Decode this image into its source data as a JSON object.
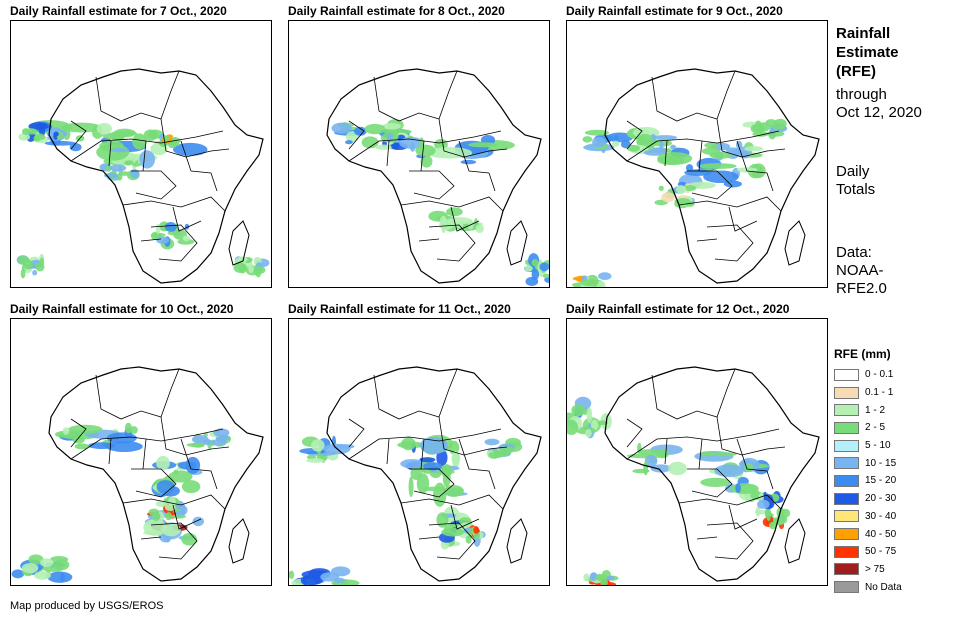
{
  "panels": [
    {
      "title": "Daily Rainfall estimate for 7 Oct., 2020",
      "day": 7
    },
    {
      "title": "Daily Rainfall estimate for 8 Oct., 2020",
      "day": 8
    },
    {
      "title": "Daily Rainfall estimate for 9 Oct., 2020",
      "day": 9
    },
    {
      "title": "Daily Rainfall estimate for 10 Oct., 2020",
      "day": 10
    },
    {
      "title": "Daily Rainfall estimate for 11 Oct., 2020",
      "day": 11
    },
    {
      "title": "Daily Rainfall estimate for 12 Oct., 2020",
      "day": 12
    }
  ],
  "sidebar": {
    "title_line1": "Rainfall",
    "title_line2": "Estimate",
    "title_line3": "(RFE)",
    "through_line1": "through",
    "through_line2": "Oct 12, 2020",
    "totals_line1": "Daily",
    "totals_line2": "Totals",
    "data_line1": "Data:",
    "data_line2": "NOAA-",
    "data_line3": "RFE2.0"
  },
  "legend": {
    "title": "RFE (mm)",
    "items": [
      {
        "label": "0 - 0.1",
        "color": "#ffffff"
      },
      {
        "label": "0.1 - 1",
        "color": "#f5dcb4"
      },
      {
        "label": "1 - 2",
        "color": "#b4f0b4"
      },
      {
        "label": "2 - 5",
        "color": "#78dc78"
      },
      {
        "label": "5 - 10",
        "color": "#b4f0fa"
      },
      {
        "label": "10 - 15",
        "color": "#78b4f0"
      },
      {
        "label": "15 - 20",
        "color": "#3c8cf0"
      },
      {
        "label": "20 - 30",
        "color": "#1e5ae6"
      },
      {
        "label": "30 - 40",
        "color": "#ffe678"
      },
      {
        "label": "40 - 50",
        "color": "#ffa000"
      },
      {
        "label": "50 - 75",
        "color": "#ff3200"
      },
      {
        "label": "> 75",
        "color": "#a01e1e"
      },
      {
        "label": "No Data",
        "color": "#9a9a9a"
      }
    ]
  },
  "credit": "Map produced by USGS/EROS"
}
